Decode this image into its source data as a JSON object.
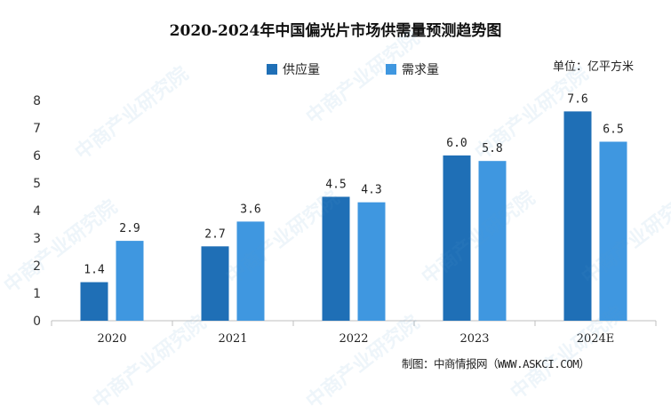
{
  "chart_data": {
    "type": "bar",
    "title": "2020-2024年中国偏光片市场供需量预测趋势图",
    "unit": "单位：亿平方米",
    "source": "制图：中商情报网（WWW.ASKCI.COM）",
    "watermark": "中商产业研究院",
    "categories": [
      "2020",
      "2021",
      "2022",
      "2023",
      "2024E"
    ],
    "series": [
      {
        "name": "供应量",
        "color": "#1F6FB6",
        "values": [
          1.4,
          2.7,
          4.5,
          6.0,
          7.6
        ],
        "labels": [
          "1.4",
          "2.7",
          "4.5",
          "6.0",
          "7.6"
        ]
      },
      {
        "name": "需求量",
        "color": "#3F97E0",
        "values": [
          2.9,
          3.6,
          4.3,
          5.8,
          6.5
        ],
        "labels": [
          "2.9",
          "3.6",
          "4.3",
          "5.8",
          "6.5"
        ]
      }
    ],
    "ylim": [
      0,
      8
    ],
    "yticks": [
      "0",
      "1",
      "2",
      "3",
      "4",
      "5",
      "6",
      "7",
      "8"
    ],
    "legend_position": "top-center",
    "grid": false
  }
}
